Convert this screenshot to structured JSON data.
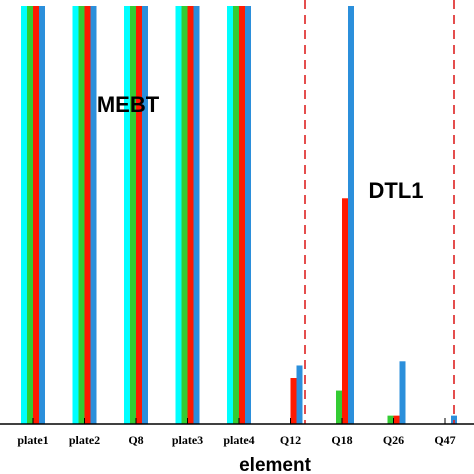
{
  "chart_data": {
    "type": "bar",
    "xlabel": "element",
    "ylabel": "",
    "categories": [
      "plate1",
      "plate2",
      "Q8",
      "plate3",
      "plate4",
      "Q12",
      "Q18",
      "Q26",
      "Q47",
      ""
    ],
    "ylim": [
      0,
      100
    ],
    "series": [
      {
        "color": "#00ffff",
        "values": [
          100,
          100,
          100,
          100,
          100,
          0,
          0,
          0,
          0,
          0
        ]
      },
      {
        "color": "#33cc33",
        "values": [
          100,
          100,
          100,
          100,
          100,
          0,
          8,
          2,
          0,
          0
        ]
      },
      {
        "color": "#ff1a00",
        "values": [
          100,
          100,
          100,
          100,
          100,
          11,
          54,
          2,
          0,
          0
        ]
      },
      {
        "color": "#2b8fdb",
        "values": [
          100,
          100,
          100,
          100,
          100,
          14,
          100,
          15,
          2,
          0
        ]
      }
    ],
    "regions": [
      {
        "label": "MEBT"
      },
      {
        "label": "DTL1"
      }
    ],
    "boundary_color": "#dd2222"
  }
}
